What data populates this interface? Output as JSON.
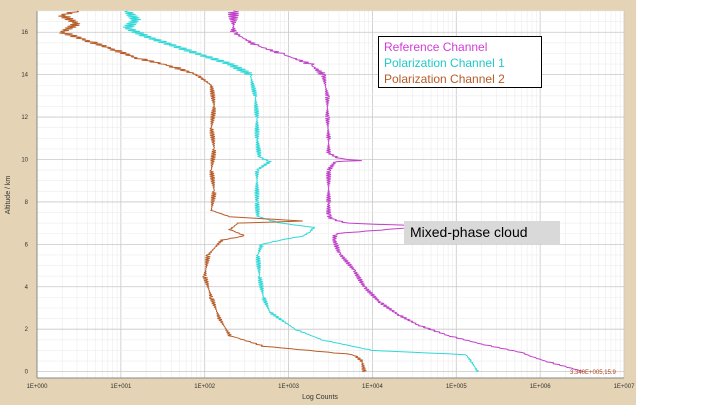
{
  "chart_data": {
    "type": "line",
    "title": "",
    "xlabel": "Log Counts",
    "ylabel": "Altitude / km",
    "xscale": "log",
    "xlim": [
      1,
      10000000
    ],
    "ylim": [
      -0.3,
      17
    ],
    "x_ticks": [
      "1E+000",
      "1E+001",
      "1E+002",
      "1E+003",
      "1E+004",
      "1E+005",
      "1E+006",
      "1E+007"
    ],
    "y_ticks": [
      "0",
      "2",
      "4",
      "6",
      "8",
      "10",
      "12",
      "14",
      "16"
    ],
    "grid": true,
    "legend_placement": "top-right",
    "annotation": "Mixed-phase cloud",
    "cursor_readout": "3.340E+005,15.9",
    "series": [
      {
        "name": "Reference Channel",
        "color": "#c040c8",
        "points": [
          [
            3300000,
            0.0
          ],
          [
            1150000,
            0.5
          ],
          [
            800000,
            0.7
          ],
          [
            600000,
            0.9
          ],
          [
            200000,
            1.3
          ],
          [
            80000,
            1.7
          ],
          [
            35000,
            2.2
          ],
          [
            20000,
            2.7
          ],
          [
            12000,
            3.3
          ],
          [
            8000,
            4.0
          ],
          [
            6000,
            4.8
          ],
          [
            4000,
            5.6
          ],
          [
            3500,
            6.2
          ],
          [
            3600,
            6.5
          ],
          [
            30000,
            6.8
          ],
          [
            38000,
            6.6
          ],
          [
            35000,
            6.4
          ],
          [
            30000,
            6.6
          ],
          [
            25000,
            6.9
          ],
          [
            5000,
            7.0
          ],
          [
            3200,
            7.2
          ],
          [
            3000,
            7.4
          ],
          [
            3000,
            8.0
          ],
          [
            3000,
            9.5
          ],
          [
            3600,
            9.9
          ],
          [
            7000,
            9.95
          ],
          [
            4000,
            10.05
          ],
          [
            3000,
            10.3
          ],
          [
            3000,
            11.0
          ],
          [
            2900,
            12.0
          ],
          [
            2900,
            13.0
          ],
          [
            2600,
            14.0
          ],
          [
            1800,
            14.5
          ],
          [
            800,
            15.0
          ],
          [
            400,
            15.4
          ],
          [
            220,
            16.0
          ],
          [
            220,
            17.0
          ]
        ]
      },
      {
        "name": "Polarization Channel 1",
        "color": "#30d8d8",
        "points": [
          [
            180000,
            0.0
          ],
          [
            150000,
            0.5
          ],
          [
            130000,
            0.8
          ],
          [
            10000,
            1.0
          ],
          [
            2500,
            1.5
          ],
          [
            1200,
            2.0
          ],
          [
            600,
            2.8
          ],
          [
            500,
            3.5
          ],
          [
            450,
            4.5
          ],
          [
            430,
            5.5
          ],
          [
            480,
            6.0
          ],
          [
            800,
            6.2
          ],
          [
            1500,
            6.4
          ],
          [
            1800,
            6.6
          ],
          [
            2000,
            6.8
          ],
          [
            800,
            7.0
          ],
          [
            430,
            7.3
          ],
          [
            420,
            8.0
          ],
          [
            420,
            9.5
          ],
          [
            600,
            9.9
          ],
          [
            450,
            10.1
          ],
          [
            420,
            11.0
          ],
          [
            420,
            12.0
          ],
          [
            400,
            13.0
          ],
          [
            350,
            14.0
          ],
          [
            200,
            14.5
          ],
          [
            80,
            15.0
          ],
          [
            40,
            15.4
          ],
          [
            20,
            15.8
          ],
          [
            12,
            16.2
          ],
          [
            15,
            16.6
          ],
          [
            12,
            17.0
          ]
        ]
      },
      {
        "name": "Polarization Channel 2",
        "color": "#b85c28",
        "points": [
          [
            8000,
            0.0
          ],
          [
            7500,
            0.5
          ],
          [
            6000,
            0.8
          ],
          [
            500,
            1.2
          ],
          [
            200,
            1.7
          ],
          [
            150,
            2.5
          ],
          [
            120,
            3.5
          ],
          [
            100,
            4.5
          ],
          [
            110,
            5.5
          ],
          [
            160,
            6.2
          ],
          [
            300,
            6.4
          ],
          [
            200,
            6.7
          ],
          [
            250,
            7.0
          ],
          [
            1500,
            7.1
          ],
          [
            200,
            7.3
          ],
          [
            120,
            7.6
          ],
          [
            130,
            8.5
          ],
          [
            120,
            9.5
          ],
          [
            130,
            10.5
          ],
          [
            120,
            11.5
          ],
          [
            130,
            12.5
          ],
          [
            120,
            13.5
          ],
          [
            80,
            14.0
          ],
          [
            40,
            14.4
          ],
          [
            15,
            14.8
          ],
          [
            8,
            15.2
          ],
          [
            4,
            15.6
          ],
          [
            2,
            16.0
          ],
          [
            3,
            16.4
          ],
          [
            2,
            16.8
          ],
          [
            3,
            17.0
          ]
        ]
      }
    ]
  }
}
